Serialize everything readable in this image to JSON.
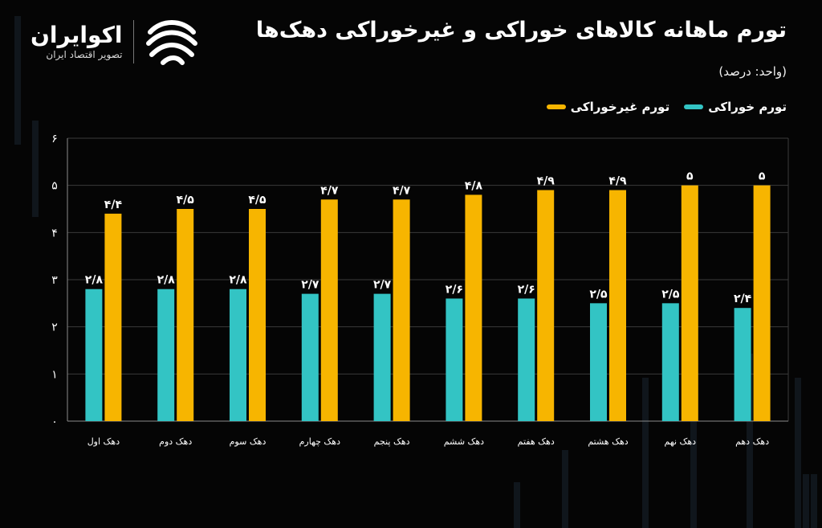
{
  "header": {
    "title": "تورم ماهانه کالاهای خوراکی و غیرخوراکی دهک‌ها",
    "unit": "(واحد: درصد)"
  },
  "logo": {
    "name": "اکوایران",
    "tagline": "تصویر اقتصاد ایران",
    "icon": "ecoiran-logo-icon"
  },
  "legend": [
    {
      "label": "تورم غیرخوراکی",
      "color": "#F7B500"
    },
    {
      "label": "تورم خوراکی",
      "color": "#33C4C4"
    }
  ],
  "chart_data": {
    "type": "bar",
    "categories": [
      "دهک اول",
      "دهک دوم",
      "دهک سوم",
      "دهک چهارم",
      "دهک پنجم",
      "دهک ششم",
      "دهک هفتم",
      "دهک هشتم",
      "دهک نهم",
      "دهک دهم"
    ],
    "series": [
      {
        "name": "تورم خوراکی",
        "color": "#33C4C4",
        "values": [
          2.8,
          2.8,
          2.8,
          2.7,
          2.7,
          2.6,
          2.6,
          2.5,
          2.5,
          2.4
        ],
        "labels": [
          "۲/۸",
          "۲/۸",
          "۲/۸",
          "۲/۷",
          "۲/۷",
          "۲/۶",
          "۲/۶",
          "۲/۵",
          "۲/۵",
          "۲/۴"
        ]
      },
      {
        "name": "تورم غیرخوراکی",
        "color": "#F7B500",
        "values": [
          4.4,
          4.5,
          4.5,
          4.7,
          4.7,
          4.8,
          4.9,
          4.9,
          5.0,
          5.0
        ],
        "labels": [
          "۴/۴",
          "۴/۵",
          "۴/۵",
          "۴/۷",
          "۴/۷",
          "۴/۸",
          "۴/۹",
          "۴/۹",
          "۵",
          "۵"
        ]
      }
    ],
    "y_ticks": [
      "۰",
      "۱",
      "۲",
      "۳",
      "۴",
      "۵",
      "۶"
    ],
    "ylim": [
      0,
      6
    ],
    "grid": true,
    "legend_position": "top-right"
  },
  "colors": {
    "background": "#050505",
    "grid": "#3a3a3a",
    "axis": "#8a8a8a"
  }
}
